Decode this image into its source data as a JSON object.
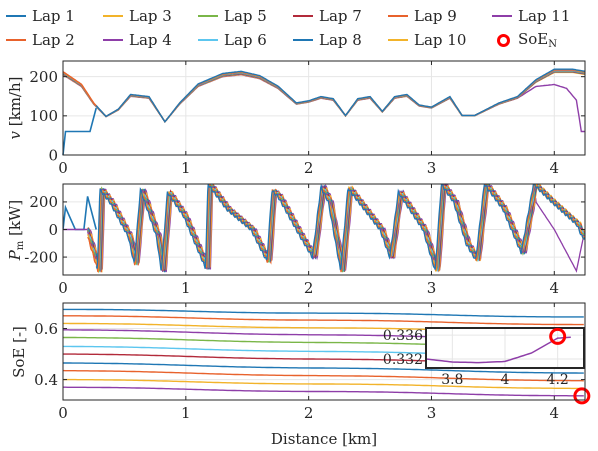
{
  "legend": [
    {
      "label": "Lap 1",
      "color": "#1f77b4"
    },
    {
      "label": "Lap 2",
      "color": "#e8622c"
    },
    {
      "label": "Lap 3",
      "color": "#f2b32a"
    },
    {
      "label": "Lap 4",
      "color": "#8e3ea8"
    },
    {
      "label": "Lap 5",
      "color": "#7ab648"
    },
    {
      "label": "Lap 6",
      "color": "#5cc6ef"
    },
    {
      "label": "Lap 7",
      "color": "#b22a3a"
    },
    {
      "label": "Lap 8",
      "color": "#1f77b4"
    },
    {
      "label": "Lap 9",
      "color": "#e8622c"
    },
    {
      "label": "Lap 10",
      "color": "#f2b32a"
    },
    {
      "label": "Lap 11",
      "color": "#8e3ea8"
    }
  ],
  "legend_marker": {
    "label_main": "SoE",
    "label_sub": "N",
    "color": "#ff0000"
  },
  "chart_data": [
    {
      "type": "line",
      "panel": "speed",
      "ylabel": "v [km/h]",
      "xlim": [
        0,
        4.25
      ],
      "ylim": [
        0,
        240
      ],
      "xticks": [
        0,
        1,
        2,
        3,
        4
      ],
      "yticks": [
        0,
        100,
        200
      ],
      "grid": true,
      "first_lap_start": {
        "x": [
          0,
          0.02,
          0.22,
          0.27
        ],
        "y": [
          0,
          60,
          60,
          120
        ]
      },
      "series_profile": {
        "x": [
          0,
          0.15,
          0.25,
          0.35,
          0.45,
          0.55,
          0.7,
          0.83,
          0.95,
          1.1,
          1.3,
          1.45,
          1.6,
          1.75,
          1.9,
          2.0,
          2.1,
          2.2,
          2.3,
          2.4,
          2.5,
          2.6,
          2.7,
          2.8,
          2.9,
          3.0,
          3.15,
          3.25,
          3.35,
          3.55,
          3.7,
          3.85,
          4.0,
          4.15,
          4.25
        ],
        "y": [
          205,
          175,
          130,
          98,
          115,
          150,
          145,
          85,
          130,
          175,
          200,
          205,
          195,
          170,
          130,
          135,
          145,
          140,
          100,
          140,
          145,
          110,
          145,
          150,
          125,
          120,
          145,
          100,
          100,
          130,
          145,
          185,
          210,
          210,
          205
        ]
      },
      "last_lap_tail": {
        "x": [
          3.7,
          3.85,
          4.0,
          4.1,
          4.18,
          4.22,
          4.25
        ],
        "y": [
          145,
          175,
          180,
          170,
          140,
          60,
          60
        ]
      }
    },
    {
      "type": "line",
      "panel": "motor_power",
      "ylabel": "P_m [kW]",
      "xlim": [
        0,
        4.25
      ],
      "ylim": [
        -330,
        330
      ],
      "xticks": [
        0,
        1,
        2,
        3,
        4
      ],
      "yticks": [
        -200,
        0,
        200
      ],
      "grid": true,
      "first_lap_start": {
        "x": [
          0,
          0.02,
          0.1,
          0.17,
          0.2,
          0.27
        ],
        "y": [
          0,
          160,
          0,
          0,
          240,
          0
        ]
      },
      "series_profile": {
        "x": [
          0,
          0.2,
          0.3,
          0.32,
          0.4,
          0.55,
          0.6,
          0.65,
          0.78,
          0.82,
          0.87,
          1.0,
          1.18,
          1.2,
          1.35,
          1.55,
          1.68,
          1.72,
          1.77,
          1.95,
          2.05,
          2.12,
          2.18,
          2.28,
          2.34,
          2.4,
          2.6,
          2.68,
          2.75,
          2.95,
          3.05,
          3.1,
          3.2,
          3.3,
          3.38,
          3.45,
          3.6,
          3.75,
          3.85,
          4.0,
          4.2,
          4.25
        ],
        "y": [
          0,
          0,
          -300,
          290,
          200,
          -50,
          -250,
          290,
          -50,
          -300,
          270,
          100,
          -280,
          330,
          150,
          0,
          -230,
          280,
          240,
          -50,
          -200,
          310,
          200,
          -300,
          300,
          230,
          0,
          -200,
          270,
          0,
          -300,
          330,
          200,
          -100,
          -220,
          330,
          150,
          -170,
          330,
          200,
          40,
          -60
        ]
      },
      "last_lap_tail": {
        "x": [
          3.85,
          4.0,
          4.12,
          4.18,
          4.25
        ],
        "y": [
          200,
          0,
          -200,
          -300,
          0
        ]
      }
    },
    {
      "type": "line",
      "panel": "state_of_energy",
      "ylabel": "SoE [-]",
      "xlabel": "Distance [km]",
      "xlim": [
        0,
        4.25
      ],
      "ylim": [
        0.32,
        0.7
      ],
      "xticks": [
        0,
        1,
        2,
        3,
        4
      ],
      "yticks": [
        0.4,
        0.6
      ],
      "grid": true,
      "lap_start_soe": [
        0.675,
        0.65,
        0.62,
        0.595,
        0.565,
        0.53,
        0.5,
        0.465,
        0.435,
        0.4,
        0.37
      ],
      "lap_end_soe": [
        0.645,
        0.615,
        0.585,
        0.555,
        0.525,
        0.49,
        0.46,
        0.425,
        0.395,
        0.365,
        0.336
      ],
      "marker": {
        "x": 4.2,
        "y": 0.336
      },
      "inset": {
        "xlim": [
          3.7,
          4.3
        ],
        "ylim": [
          0.3305,
          0.3372
        ],
        "xticks": [
          3.8,
          4,
          4.2
        ],
        "yticks": [
          0.332,
          0.336
        ],
        "xtick_labels": [
          "3.8",
          "4",
          "4.2"
        ],
        "ytick_labels": [
          "0.332",
          "0.336"
        ],
        "curve": {
          "x": [
            3.7,
            3.8,
            3.9,
            4.0,
            4.1,
            4.2,
            4.3
          ],
          "y": [
            0.332,
            0.3315,
            0.3314,
            0.3316,
            0.333,
            0.3355,
            0.3358
          ]
        }
      }
    }
  ]
}
